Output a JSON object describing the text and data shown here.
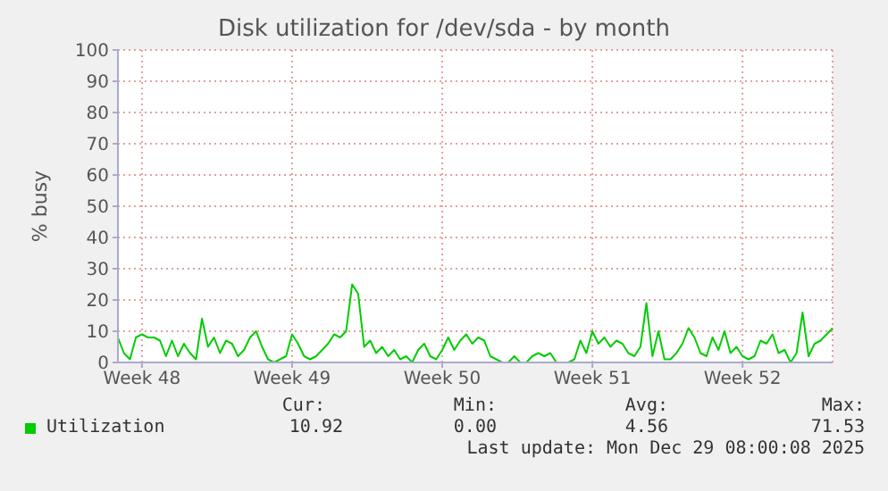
{
  "chart_data": {
    "type": "line",
    "title": "Disk utilization for /dev/sda - by month",
    "ylabel": "% busy",
    "categories": [
      null,
      null,
      null,
      null,
      "Week 48",
      null,
      null,
      null,
      null,
      null,
      null,
      null,
      null,
      null,
      null,
      null,
      null,
      null,
      null,
      null,
      null,
      null,
      null,
      null,
      null,
      null,
      null,
      null,
      null,
      "Week 49",
      null,
      null,
      null,
      null,
      null,
      null,
      null,
      null,
      null,
      null,
      null,
      null,
      null,
      null,
      null,
      null,
      null,
      null,
      null,
      null,
      null,
      null,
      null,
      null,
      "Week 50",
      null,
      null,
      null,
      null,
      null,
      null,
      null,
      null,
      null,
      null,
      null,
      null,
      null,
      null,
      null,
      null,
      null,
      null,
      null,
      null,
      null,
      null,
      null,
      null,
      "Week 51",
      null,
      null,
      null,
      null,
      null,
      null,
      null,
      null,
      null,
      null,
      null,
      null,
      null,
      null,
      null,
      null,
      null,
      null,
      null,
      null,
      null,
      null,
      null,
      null,
      "Week 52",
      null,
      null,
      null,
      null,
      null,
      null,
      null,
      null,
      null,
      null,
      null,
      null,
      null,
      null,
      null
    ],
    "series": [
      {
        "name": "Utilization",
        "color": "#00cc00",
        "values": [
          8,
          3,
          1,
          8,
          9,
          8,
          8,
          7,
          2,
          7,
          2,
          6,
          3,
          1,
          14,
          5,
          8,
          3,
          7,
          6,
          2,
          4,
          8,
          10,
          5,
          1,
          0,
          1,
          2,
          9,
          6,
          2,
          1,
          2,
          4,
          6,
          9,
          8,
          10,
          25,
          22,
          5,
          7,
          3,
          5,
          2,
          4,
          1,
          2,
          0,
          4,
          6,
          2,
          1,
          4,
          8,
          4,
          7,
          9,
          6,
          8,
          7,
          2,
          1,
          0,
          0,
          2,
          0,
          0,
          2,
          3,
          2,
          3,
          0,
          0,
          0,
          1,
          7,
          3,
          10,
          6,
          8,
          5,
          7,
          6,
          3,
          2,
          5,
          19,
          2,
          10,
          1,
          1,
          3,
          6,
          11,
          8,
          3,
          2,
          8,
          4,
          10,
          3,
          5,
          2,
          1,
          2,
          7,
          6,
          9,
          3,
          4,
          0,
          3,
          16,
          2,
          6,
          7,
          9,
          11
        ]
      }
    ],
    "ylim": [
      0,
      100
    ],
    "yticks": [
      0,
      10,
      20,
      30,
      40,
      50,
      60,
      70,
      80,
      90,
      100
    ],
    "grid": true,
    "legend": "bottom",
    "annotations": [
      "Cur:",
      "Min:",
      "Avg:",
      "Max:",
      "10.92",
      "0.00",
      "4.56",
      "71.53",
      "Last update: Mon Dec 29 08:00:08 2025"
    ]
  }
}
